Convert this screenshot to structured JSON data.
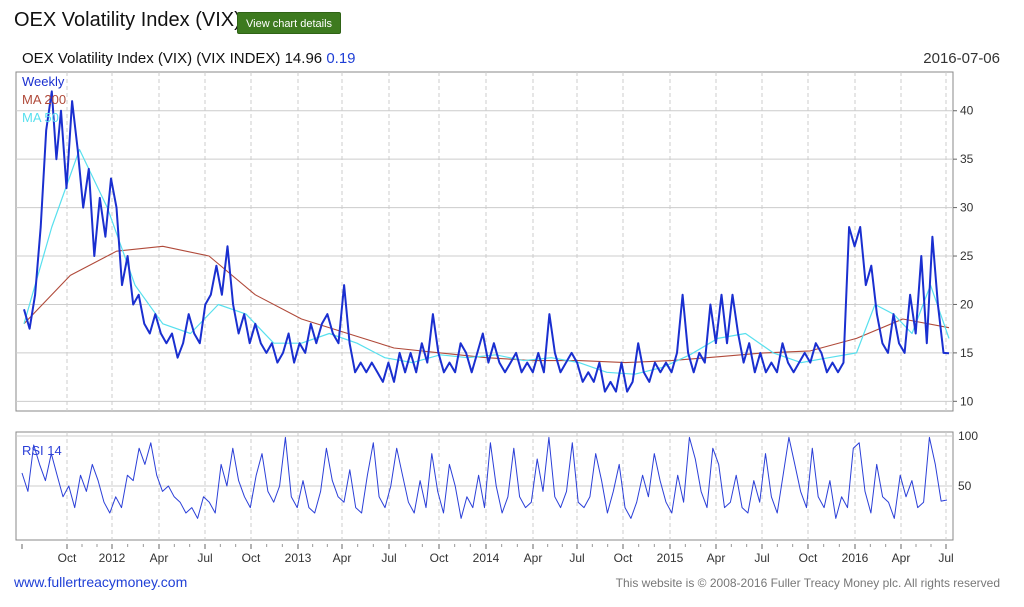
{
  "page": {
    "title": "OEX Volatility Index (VIX)",
    "details_button": "View chart details"
  },
  "chart_header": {
    "name": "OEX Volatility Index (VIX) (VIX INDEX)",
    "value": "14.96",
    "change": "0.19",
    "date": "2016-07-06"
  },
  "footer": {
    "site": "www.fullertreacymoney.com",
    "copyright": "This website is © 2008-2016 Fuller Treacy Money plc. All rights reserved"
  },
  "colors": {
    "weekly": "#1a2fd0",
    "ma200": "#b04a3a",
    "ma50": "#58e0ee",
    "rsi": "#2b3fd8",
    "grid": "#cccccc"
  },
  "chart_data": [
    {
      "type": "line",
      "panel": "price",
      "legend": [
        "Weekly",
        "MA 200",
        "MA 50"
      ],
      "ylim": [
        9,
        44
      ],
      "yticks": [
        10,
        15,
        20,
        25,
        30,
        35,
        40
      ],
      "xlim": [
        0,
        100
      ],
      "series": [
        {
          "name": "Weekly",
          "points": [
            [
              0,
              19.5
            ],
            [
              0.6,
              17.5
            ],
            [
              1.2,
              21
            ],
            [
              1.8,
              28
            ],
            [
              2.4,
              38
            ],
            [
              3,
              42
            ],
            [
              3.5,
              35
            ],
            [
              4,
              40
            ],
            [
              4.6,
              32
            ],
            [
              5.2,
              41
            ],
            [
              5.8,
              36
            ],
            [
              6.4,
              30
            ],
            [
              7,
              34
            ],
            [
              7.6,
              25
            ],
            [
              8.2,
              31
            ],
            [
              8.8,
              27
            ],
            [
              9.4,
              33
            ],
            [
              10,
              30
            ],
            [
              10.6,
              22
            ],
            [
              11.2,
              25
            ],
            [
              11.8,
              20
            ],
            [
              12.4,
              21
            ],
            [
              13,
              18
            ],
            [
              13.6,
              17
            ],
            [
              14.2,
              19
            ],
            [
              14.8,
              17
            ],
            [
              15.4,
              16
            ],
            [
              16,
              17
            ],
            [
              16.6,
              14.5
            ],
            [
              17.2,
              16
            ],
            [
              17.8,
              19
            ],
            [
              18.4,
              17
            ],
            [
              19,
              16
            ],
            [
              19.6,
              20
            ],
            [
              20.2,
              21
            ],
            [
              20.8,
              24
            ],
            [
              21.4,
              21
            ],
            [
              22,
              26
            ],
            [
              22.6,
              20
            ],
            [
              23.2,
              17
            ],
            [
              23.8,
              19
            ],
            [
              24.4,
              16
            ],
            [
              25,
              18
            ],
            [
              25.6,
              16
            ],
            [
              26.2,
              15
            ],
            [
              26.8,
              16
            ],
            [
              27.4,
              14
            ],
            [
              28,
              15
            ],
            [
              28.6,
              17
            ],
            [
              29.2,
              14
            ],
            [
              29.8,
              16
            ],
            [
              30.4,
              15
            ],
            [
              31,
              18
            ],
            [
              31.6,
              16
            ],
            [
              32.2,
              18
            ],
            [
              32.8,
              19
            ],
            [
              33.4,
              17
            ],
            [
              34,
              16
            ],
            [
              34.6,
              22
            ],
            [
              35.2,
              16
            ],
            [
              35.8,
              13
            ],
            [
              36.4,
              14
            ],
            [
              37,
              13
            ],
            [
              37.6,
              14
            ],
            [
              38.2,
              13
            ],
            [
              38.8,
              12
            ],
            [
              39.4,
              14
            ],
            [
              40,
              12
            ],
            [
              40.6,
              15
            ],
            [
              41.2,
              13
            ],
            [
              41.8,
              15
            ],
            [
              42.4,
              13
            ],
            [
              43,
              16
            ],
            [
              43.6,
              14
            ],
            [
              44.2,
              19
            ],
            [
              44.8,
              15
            ],
            [
              45.4,
              13
            ],
            [
              46,
              14
            ],
            [
              46.6,
              13
            ],
            [
              47.2,
              16
            ],
            [
              47.8,
              15
            ],
            [
              48.4,
              13
            ],
            [
              49,
              15
            ],
            [
              49.6,
              17
            ],
            [
              50.2,
              14
            ],
            [
              50.8,
              16
            ],
            [
              51.4,
              14
            ],
            [
              52,
              13
            ],
            [
              52.6,
              14
            ],
            [
              53.2,
              15
            ],
            [
              53.8,
              13
            ],
            [
              54.4,
              14
            ],
            [
              55,
              13
            ],
            [
              55.6,
              15
            ],
            [
              56.2,
              13
            ],
            [
              56.8,
              19
            ],
            [
              57.4,
              15
            ],
            [
              58,
              13
            ],
            [
              58.6,
              14
            ],
            [
              59.2,
              15
            ],
            [
              59.8,
              14
            ],
            [
              60.4,
              12
            ],
            [
              61,
              13
            ],
            [
              61.6,
              12
            ],
            [
              62.2,
              14
            ],
            [
              62.8,
              11
            ],
            [
              63.4,
              12
            ],
            [
              64,
              11
            ],
            [
              64.6,
              14
            ],
            [
              65.2,
              11
            ],
            [
              65.8,
              12
            ],
            [
              66.4,
              16
            ],
            [
              67,
              13
            ],
            [
              67.6,
              12
            ],
            [
              68.2,
              14
            ],
            [
              68.8,
              13
            ],
            [
              69.4,
              14
            ],
            [
              70,
              13
            ],
            [
              70.6,
              15
            ],
            [
              71.2,
              21
            ],
            [
              71.8,
              15
            ],
            [
              72.4,
              13
            ],
            [
              73,
              15
            ],
            [
              73.6,
              14
            ],
            [
              74.2,
              20
            ],
            [
              74.8,
              16
            ],
            [
              75.4,
              21
            ],
            [
              76,
              16
            ],
            [
              76.6,
              21
            ],
            [
              77.2,
              17
            ],
            [
              77.8,
              14
            ],
            [
              78.4,
              16
            ],
            [
              79,
              13
            ],
            [
              79.6,
              15
            ],
            [
              80.2,
              13
            ],
            [
              80.8,
              14
            ],
            [
              81.4,
              13
            ],
            [
              82,
              16
            ],
            [
              82.6,
              14
            ],
            [
              83.2,
              13
            ],
            [
              83.8,
              14
            ],
            [
              84.4,
              15
            ],
            [
              85,
              14
            ],
            [
              85.6,
              16
            ],
            [
              86.2,
              15
            ],
            [
              86.8,
              13
            ],
            [
              87.4,
              14
            ],
            [
              88,
              13
            ],
            [
              88.6,
              14
            ],
            [
              89.2,
              28
            ],
            [
              89.8,
              26
            ],
            [
              90.4,
              28
            ],
            [
              91,
              22
            ],
            [
              91.6,
              24
            ],
            [
              92.2,
              19
            ],
            [
              92.8,
              16
            ],
            [
              93.4,
              15
            ],
            [
              94,
              19
            ],
            [
              94.6,
              16
            ],
            [
              95.2,
              15
            ],
            [
              95.8,
              21
            ],
            [
              96.4,
              17
            ],
            [
              97,
              25
            ],
            [
              97.6,
              16
            ],
            [
              98.2,
              27
            ],
            [
              98.8,
              20
            ],
            [
              99.4,
              15
            ],
            [
              100,
              14.96
            ]
          ]
        },
        {
          "name": "MA 200",
          "points": [
            [
              0,
              18
            ],
            [
              5,
              23
            ],
            [
              10,
              25.5
            ],
            [
              15,
              26
            ],
            [
              20,
              25
            ],
            [
              25,
              21
            ],
            [
              30,
              18.5
            ],
            [
              35,
              17
            ],
            [
              40,
              15.5
            ],
            [
              45,
              15
            ],
            [
              50,
              14.5
            ],
            [
              55,
              14.2
            ],
            [
              60,
              14.2
            ],
            [
              65,
              14
            ],
            [
              70,
              14.2
            ],
            [
              75,
              14.6
            ],
            [
              80,
              15
            ],
            [
              85,
              15.2
            ],
            [
              90,
              16.5
            ],
            [
              95,
              18.5
            ],
            [
              100,
              17.6
            ]
          ]
        },
        {
          "name": "MA 50",
          "points": [
            [
              0,
              18
            ],
            [
              3,
              28
            ],
            [
              6,
              36
            ],
            [
              9,
              30
            ],
            [
              12,
              22
            ],
            [
              15,
              18
            ],
            [
              18,
              17
            ],
            [
              21,
              20
            ],
            [
              24,
              19
            ],
            [
              27,
              16
            ],
            [
              30,
              16
            ],
            [
              33,
              17
            ],
            [
              36,
              16
            ],
            [
              39,
              14.5
            ],
            [
              42,
              14
            ],
            [
              45,
              14.8
            ],
            [
              48,
              14.5
            ],
            [
              51,
              14.8
            ],
            [
              54,
              14.2
            ],
            [
              57,
              14.5
            ],
            [
              60,
              14
            ],
            [
              63,
              13
            ],
            [
              66,
              12.8
            ],
            [
              69,
              13.5
            ],
            [
              72,
              14.8
            ],
            [
              75,
              16.5
            ],
            [
              78,
              17
            ],
            [
              81,
              15
            ],
            [
              84,
              14
            ],
            [
              87,
              14.5
            ],
            [
              90,
              15
            ],
            [
              92,
              20
            ],
            [
              94,
              19
            ],
            [
              96,
              17
            ],
            [
              98,
              22
            ],
            [
              100,
              16.5
            ]
          ]
        }
      ]
    },
    {
      "type": "line",
      "panel": "rsi",
      "legend": [
        "RSI 14"
      ],
      "ylim": [
        0,
        100
      ],
      "yticks": [
        50,
        100
      ],
      "xticks": [
        "Oct",
        "2012",
        "Apr",
        "Jul",
        "Oct",
        "2013",
        "Apr",
        "Jul",
        "Oct",
        "2014",
        "Apr",
        "Jul",
        "Oct",
        "2015",
        "Apr",
        "Jul",
        "Oct",
        "2016",
        "Apr",
        "Jul"
      ],
      "series": [
        {
          "name": "RSI 14",
          "values": [
            62,
            45,
            88,
            70,
            55,
            80,
            60,
            40,
            50,
            30,
            60,
            45,
            70,
            55,
            35,
            25,
            40,
            30,
            60,
            55,
            85,
            70,
            90,
            60,
            45,
            50,
            40,
            35,
            25,
            30,
            20,
            40,
            35,
            25,
            70,
            50,
            85,
            55,
            40,
            30,
            60,
            80,
            45,
            35,
            50,
            95,
            40,
            30,
            55,
            30,
            25,
            45,
            85,
            55,
            40,
            35,
            65,
            30,
            25,
            60,
            90,
            40,
            30,
            50,
            85,
            60,
            35,
            25,
            55,
            30,
            80,
            45,
            25,
            70,
            50,
            20,
            40,
            30,
            60,
            30,
            90,
            50,
            25,
            40,
            85,
            40,
            30,
            35,
            75,
            45,
            95,
            40,
            30,
            45,
            90,
            35,
            30,
            40,
            80,
            55,
            25,
            45,
            70,
            30,
            20,
            35,
            60,
            40,
            80,
            55,
            35,
            25,
            60,
            35,
            95,
            75,
            45,
            30,
            85,
            70,
            30,
            35,
            60,
            30,
            25,
            55,
            35,
            80,
            40,
            25,
            60,
            95,
            70,
            45,
            30,
            85,
            40,
            30,
            55,
            20,
            40,
            30,
            85,
            90,
            45,
            25,
            70,
            40,
            35,
            20,
            60,
            40,
            55,
            30,
            35,
            95,
            70,
            36,
            37
          ]
        }
      ]
    }
  ]
}
